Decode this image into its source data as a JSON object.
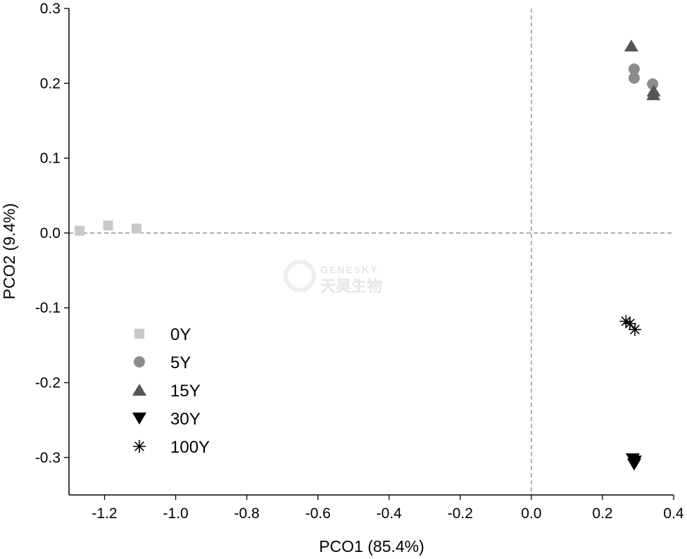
{
  "chart_data": {
    "type": "scatter",
    "xlabel": "PCO1 (85.4%)",
    "ylabel": "PCO2 (9.4%)",
    "xlim": [
      -1.3,
      0.4
    ],
    "ylim": [
      -0.35,
      0.3
    ],
    "x_ticks": [
      -1.2,
      -1.0,
      -0.8,
      -0.6,
      -0.4,
      -0.2,
      0.0,
      0.2,
      0.4
    ],
    "x_tick_labels": [
      "-1.2",
      "-1.0",
      "-0.8",
      "-0.6",
      "-0.4",
      "-0.2",
      "0.0",
      "0.2",
      "0.4"
    ],
    "y_ticks": [
      0.3,
      0.2,
      0.1,
      0.0,
      -0.1,
      -0.2,
      -0.3
    ],
    "y_tick_labels": [
      "0.3",
      "0.2",
      "0.1",
      "0.0",
      "-0.1",
      "-0.2",
      "-0.3"
    ],
    "reference_lines": {
      "x": 0.0,
      "y": 0.0,
      "style": "dashed"
    },
    "grid": false,
    "legend_position": "lower-left",
    "series": [
      {
        "name": "0Y",
        "marker": "square",
        "color": "#c8c8c8",
        "points": [
          [
            -1.27,
            0.003
          ],
          [
            -1.19,
            0.01
          ],
          [
            -1.11,
            0.006
          ]
        ]
      },
      {
        "name": "5Y",
        "marker": "circle",
        "color": "#8c8c8c",
        "points": [
          [
            0.289,
            0.219
          ],
          [
            0.289,
            0.207
          ],
          [
            0.341,
            0.199
          ]
        ]
      },
      {
        "name": "15Y",
        "marker": "triangle-up",
        "color": "#555555",
        "points": [
          [
            0.281,
            0.25
          ],
          [
            0.344,
            0.19
          ],
          [
            0.343,
            0.185
          ]
        ]
      },
      {
        "name": "30Y",
        "marker": "triangle-down",
        "color": "#000000",
        "points": [
          [
            0.285,
            -0.302
          ],
          [
            0.291,
            -0.305
          ],
          [
            0.289,
            -0.309
          ]
        ]
      },
      {
        "name": "100Y",
        "marker": "asterisk",
        "color": "#000000",
        "points": [
          [
            0.266,
            -0.118
          ],
          [
            0.277,
            -0.121
          ],
          [
            0.291,
            -0.129
          ]
        ]
      }
    ]
  },
  "watermark": {
    "en": "GENESKY",
    "cn": "天昊生物"
  }
}
